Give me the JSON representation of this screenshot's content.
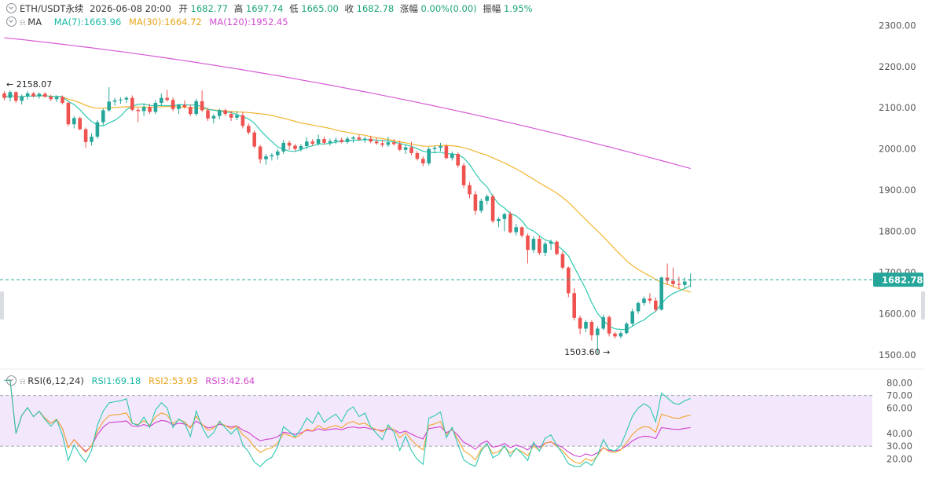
{
  "header": {
    "symbol": "ETH/USDT永续",
    "datetime": "2026-06-08 20:00",
    "open_label": "开",
    "open": "1682.77",
    "high_label": "高",
    "high": "1697.74",
    "low_label": "低",
    "low": "1665.00",
    "close_label": "收",
    "close": "1682.78",
    "change_label": "涨幅",
    "change": "0.00%(0.00)",
    "amp_label": "振幅",
    "amp": "1.95%"
  },
  "ma_legend": {
    "name": "MA",
    "ma7": "MA(7):1663.96",
    "ma30": "MA(30):1664.72",
    "ma120": "MA(120):1952.45"
  },
  "rsi_legend": {
    "name": "RSI(6,12,24)",
    "rsi1": "RSI1:69.18",
    "rsi2": "RSI2:53.93",
    "rsi3": "RSI3:42.64"
  },
  "colors": {
    "up": "#26a69a",
    "down": "#ef5350",
    "ma7": "#2dc9b0",
    "ma30": "#f2b531",
    "ma120": "#d65ad6",
    "rsi1": "#2dc9b0",
    "rsi2": "#f2a531",
    "rsi3": "#cf3fcf",
    "rsi_band": "#f3e7fb",
    "price_tag": "#26a69a"
  },
  "icons": [
    "collapse-chevron-icon",
    "bell-icon"
  ],
  "chart_data": [
    {
      "type": "candlestick",
      "y_ticks": [
        "2300.00",
        "2200.00",
        "2100.00",
        "2000.00",
        "1900.00",
        "1800.00",
        "1700.00",
        "1600.00",
        "1500.00"
      ],
      "ylim": [
        1488,
        2330
      ],
      "last_price": "1682.78",
      "annotations": {
        "high": "2158.07",
        "low": "1503.60"
      },
      "candles": [
        [
          2135,
          2140,
          2118,
          2124
        ],
        [
          2124,
          2142,
          2115,
          2138
        ],
        [
          2138,
          2140,
          2112,
          2117
        ],
        [
          2117,
          2132,
          2108,
          2128
        ],
        [
          2128,
          2140,
          2120,
          2135
        ],
        [
          2135,
          2138,
          2125,
          2128
        ],
        [
          2128,
          2137,
          2122,
          2134
        ],
        [
          2134,
          2138,
          2124,
          2127
        ],
        [
          2127,
          2132,
          2116,
          2121
        ],
        [
          2121,
          2130,
          2114,
          2126
        ],
        [
          2126,
          2130,
          2108,
          2112
        ],
        [
          2112,
          2115,
          2055,
          2060
        ],
        [
          2060,
          2080,
          2050,
          2075
        ],
        [
          2075,
          2078,
          2045,
          2048
        ],
        [
          2048,
          2052,
          2003,
          2017
        ],
        [
          2017,
          2038,
          2008,
          2030
        ],
        [
          2030,
          2070,
          2025,
          2065
        ],
        [
          2065,
          2098,
          2058,
          2094
        ],
        [
          2094,
          2150,
          2090,
          2115
        ],
        [
          2115,
          2124,
          2105,
          2118
        ],
        [
          2118,
          2125,
          2110,
          2120
        ],
        [
          2120,
          2128,
          2112,
          2124
        ],
        [
          2124,
          2130,
          2092,
          2095
        ],
        [
          2095,
          2100,
          2065,
          2092
        ],
        [
          2092,
          2110,
          2080,
          2102
        ],
        [
          2102,
          2110,
          2085,
          2090
        ],
        [
          2090,
          2118,
          2085,
          2112
        ],
        [
          2112,
          2135,
          2105,
          2124
        ],
        [
          2124,
          2144,
          2115,
          2119
        ],
        [
          2119,
          2125,
          2092,
          2097
        ],
        [
          2097,
          2110,
          2085,
          2107
        ],
        [
          2107,
          2118,
          2098,
          2102
        ],
        [
          2102,
          2108,
          2080,
          2085
        ],
        [
          2085,
          2122,
          2080,
          2116
        ],
        [
          2116,
          2142,
          2090,
          2094
        ],
        [
          2094,
          2100,
          2068,
          2074
        ],
        [
          2074,
          2085,
          2062,
          2080
        ],
        [
          2080,
          2098,
          2072,
          2094
        ],
        [
          2094,
          2098,
          2080,
          2085
        ],
        [
          2085,
          2092,
          2068,
          2076
        ],
        [
          2076,
          2092,
          2070,
          2082
        ],
        [
          2082,
          2090,
          2050,
          2056
        ],
        [
          2056,
          2062,
          2035,
          2040
        ],
        [
          2040,
          2045,
          2002,
          2006
        ],
        [
          2006,
          2010,
          1965,
          1975
        ],
        [
          1975,
          1988,
          1962,
          1982
        ],
        [
          1982,
          1990,
          1972,
          1985
        ],
        [
          1985,
          2000,
          1975,
          1994
        ],
        [
          1994,
          2022,
          1988,
          2015
        ],
        [
          2015,
          2020,
          1998,
          2008
        ],
        [
          2008,
          2012,
          1995,
          2000
        ],
        [
          2000,
          2012,
          1994,
          2007
        ],
        [
          2007,
          2028,
          2000,
          2018
        ],
        [
          2018,
          2024,
          2008,
          2013
        ],
        [
          2013,
          2035,
          2008,
          2024
        ],
        [
          2024,
          2030,
          2010,
          2015
        ],
        [
          2015,
          2025,
          2008,
          2019
        ],
        [
          2019,
          2028,
          2012,
          2022
        ],
        [
          2022,
          2028,
          2014,
          2017
        ],
        [
          2017,
          2030,
          2012,
          2025
        ],
        [
          2025,
          2032,
          2015,
          2028
        ],
        [
          2028,
          2035,
          2020,
          2023
        ],
        [
          2023,
          2030,
          2015,
          2025
        ],
        [
          2025,
          2032,
          2014,
          2018
        ],
        [
          2018,
          2028,
          2010,
          2014
        ],
        [
          2014,
          2022,
          2005,
          2010
        ],
        [
          2010,
          2030,
          2005,
          2016
        ],
        [
          2016,
          2024,
          2008,
          2012
        ],
        [
          2012,
          2020,
          1995,
          1998
        ],
        [
          1998,
          2010,
          1988,
          2004
        ],
        [
          2004,
          2018,
          1985,
          1990
        ],
        [
          1990,
          1995,
          1972,
          1976
        ],
        [
          1976,
          1982,
          1958,
          1965
        ],
        [
          1965,
          2005,
          1960,
          2000
        ],
        [
          2000,
          2008,
          1990,
          2003
        ],
        [
          2003,
          2015,
          1995,
          2007
        ],
        [
          2007,
          2012,
          1975,
          1978
        ],
        [
          1978,
          1994,
          1972,
          1988
        ],
        [
          1988,
          1992,
          1955,
          1960
        ],
        [
          1960,
          1966,
          1905,
          1912
        ],
        [
          1912,
          1920,
          1880,
          1890
        ],
        [
          1890,
          1898,
          1840,
          1850
        ],
        [
          1850,
          1880,
          1845,
          1874
        ],
        [
          1874,
          1890,
          1865,
          1885
        ],
        [
          1885,
          1890,
          1820,
          1825
        ],
        [
          1825,
          1835,
          1810,
          1830
        ],
        [
          1830,
          1845,
          1800,
          1842
        ],
        [
          1842,
          1848,
          1795,
          1798
        ],
        [
          1798,
          1818,
          1790,
          1810
        ],
        [
          1810,
          1812,
          1785,
          1790
        ],
        [
          1790,
          1795,
          1722,
          1755
        ],
        [
          1755,
          1788,
          1748,
          1782
        ],
        [
          1782,
          1790,
          1742,
          1748
        ],
        [
          1748,
          1775,
          1740,
          1770
        ],
        [
          1770,
          1780,
          1755,
          1775
        ],
        [
          1775,
          1778,
          1742,
          1745
        ],
        [
          1745,
          1752,
          1708,
          1712
        ],
        [
          1712,
          1715,
          1640,
          1650
        ],
        [
          1650,
          1662,
          1584,
          1590
        ],
        [
          1590,
          1596,
          1550,
          1564
        ],
        [
          1564,
          1585,
          1555,
          1580
        ],
        [
          1580,
          1585,
          1535,
          1548
        ],
        [
          1548,
          1570,
          1503.6,
          1564
        ],
        [
          1564,
          1598,
          1560,
          1592
        ],
        [
          1592,
          1596,
          1545,
          1552
        ],
        [
          1552,
          1556,
          1540,
          1545
        ],
        [
          1545,
          1558,
          1540,
          1553
        ],
        [
          1553,
          1580,
          1550,
          1576
        ],
        [
          1576,
          1612,
          1570,
          1606
        ],
        [
          1606,
          1630,
          1600,
          1626
        ],
        [
          1626,
          1642,
          1620,
          1637
        ],
        [
          1637,
          1650,
          1625,
          1632
        ],
        [
          1632,
          1640,
          1605,
          1610
        ],
        [
          1610,
          1690,
          1608,
          1688
        ],
        [
          1688,
          1722,
          1670,
          1680
        ],
        [
          1680,
          1712,
          1665,
          1672
        ],
        [
          1672,
          1690,
          1660,
          1670
        ],
        [
          1670,
          1688,
          1660,
          1678
        ],
        [
          1682.77,
          1697.74,
          1665,
          1682.78
        ]
      ]
    },
    {
      "type": "line",
      "title": "RSI(6,12,24)",
      "y_ticks": [
        "80.00",
        "70.00",
        "60.00",
        "40.00",
        "30.00",
        "20.00"
      ],
      "ylim": [
        13,
        83
      ],
      "band": [
        30,
        70
      ],
      "series": [
        {
          "name": "RSI1"
        },
        {
          "name": "RSI2"
        },
        {
          "name": "RSI3"
        }
      ]
    }
  ]
}
